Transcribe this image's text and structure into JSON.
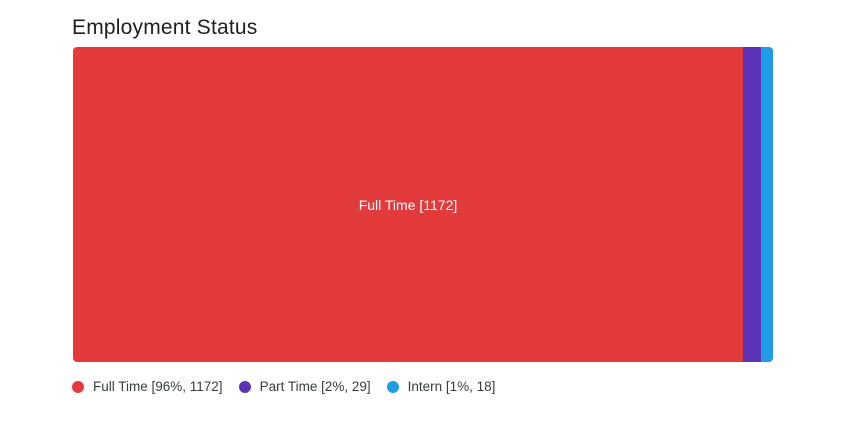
{
  "title": "Employment Status",
  "chart_data": {
    "type": "bar",
    "subtype": "treemap-single-row-proportional",
    "title": "Employment Status",
    "categories": [
      "Full Time",
      "Part Time",
      "Intern"
    ],
    "values": [
      1172,
      29,
      18
    ],
    "percents": [
      96,
      2,
      1
    ],
    "colors": [
      "#e33b3b",
      "#5c33b4",
      "#1e9ce6"
    ],
    "legend_position": "bottom-left",
    "axes": "none",
    "grid": false,
    "data_labels": [
      "Full Time [1172]",
      "",
      ""
    ]
  },
  "treemap": {
    "segments": [
      {
        "name": "Full Time",
        "label": "Full Time [1172]",
        "color": "#e33b3b",
        "width_pct": "95.71%"
      },
      {
        "name": "Part Time",
        "label": "",
        "color": "#5c33b4",
        "width_pct": "2.57%"
      },
      {
        "name": "Intern",
        "label": "",
        "color": "#1e9ce6",
        "width_pct": "1.72%"
      }
    ]
  },
  "legend": {
    "items": [
      {
        "label": "Full Time [96%, 1172]",
        "color": "#e33b3b"
      },
      {
        "label": "Part Time [2%, 29]",
        "color": "#5c33b4"
      },
      {
        "label": "Intern [1%, 18]",
        "color": "#1e9ce6"
      }
    ]
  }
}
